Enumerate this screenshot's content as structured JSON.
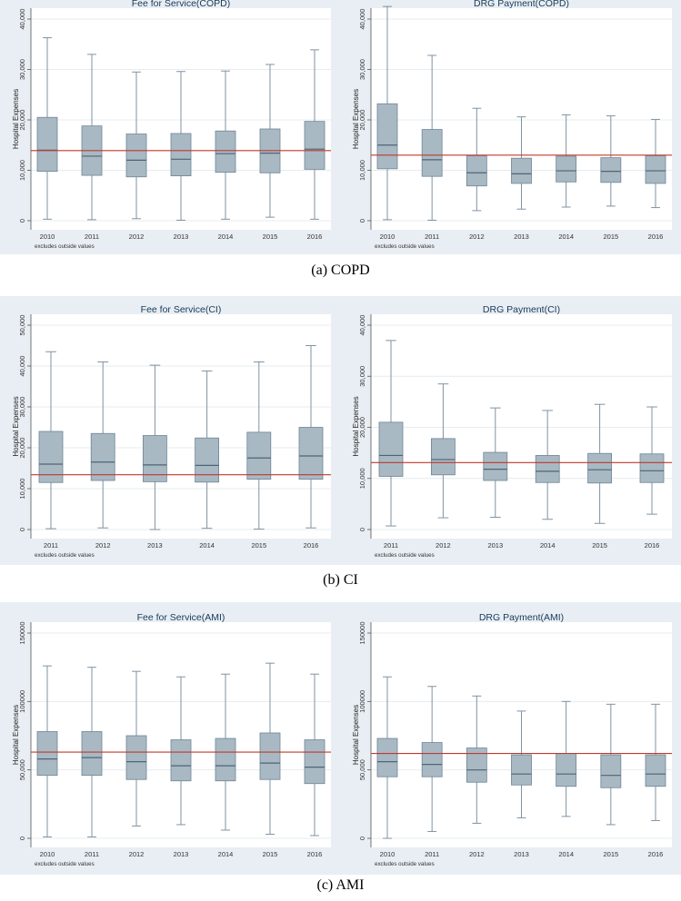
{
  "captions": [
    "(a) COPD",
    "(b) CI",
    "(c) AMI"
  ],
  "chart_data": [
    {
      "type": "box",
      "title": "Fee for Service(COPD)",
      "ylabel": "Hospital Expenses",
      "note": "excludes outside values",
      "ylim": [
        0,
        40000
      ],
      "yticks": [
        0,
        10000,
        20000,
        30000,
        40000
      ],
      "ytick_labels": [
        "0",
        "10,000",
        "20,000",
        "30,000",
        "40,000"
      ],
      "categories": [
        "2010",
        "2011",
        "2012",
        "2013",
        "2014",
        "2015",
        "2016"
      ],
      "boxes": [
        {
          "min": 300,
          "q1": 9800,
          "median": 14000,
          "q3": 20500,
          "max": 36300
        },
        {
          "min": 200,
          "q1": 9000,
          "median": 12800,
          "q3": 18800,
          "max": 33000
        },
        {
          "min": 400,
          "q1": 8700,
          "median": 12000,
          "q3": 17200,
          "max": 29500
        },
        {
          "min": 100,
          "q1": 8900,
          "median": 12200,
          "q3": 17300,
          "max": 29600
        },
        {
          "min": 300,
          "q1": 9600,
          "median": 13300,
          "q3": 17800,
          "max": 29700
        },
        {
          "min": 700,
          "q1": 9500,
          "median": 13400,
          "q3": 18200,
          "max": 31000
        },
        {
          "min": 300,
          "q1": 10200,
          "median": 14200,
          "q3": 19700,
          "max": 33900
        }
      ],
      "reference_line": 13900
    },
    {
      "type": "box",
      "title": "DRG Payment(COPD)",
      "ylabel": "Hospital Expenses",
      "note": "excludes outside values",
      "ylim": [
        0,
        40000
      ],
      "yticks": [
        0,
        10000,
        20000,
        30000,
        40000
      ],
      "ytick_labels": [
        "0",
        "10,000",
        "20,000",
        "30,000",
        "40,000"
      ],
      "categories": [
        "2010",
        "2011",
        "2012",
        "2013",
        "2014",
        "2015",
        "2016"
      ],
      "boxes": [
        {
          "min": 200,
          "q1": 10300,
          "median": 15000,
          "q3": 23200,
          "max": 42500
        },
        {
          "min": 100,
          "q1": 8800,
          "median": 12100,
          "q3": 18100,
          "max": 32800
        },
        {
          "min": 2000,
          "q1": 6900,
          "median": 9500,
          "q3": 12900,
          "max": 22300
        },
        {
          "min": 2300,
          "q1": 7400,
          "median": 9300,
          "q3": 12400,
          "max": 20600
        },
        {
          "min": 2700,
          "q1": 7700,
          "median": 9900,
          "q3": 12800,
          "max": 21000
        },
        {
          "min": 2900,
          "q1": 7600,
          "median": 9800,
          "q3": 12500,
          "max": 20800
        },
        {
          "min": 2600,
          "q1": 7400,
          "median": 9900,
          "q3": 12900,
          "max": 20100
        }
      ],
      "reference_line": 13000
    },
    {
      "type": "box",
      "title": "Fee for Service(CI)",
      "ylabel": "Hospital Expenses",
      "note": "excludes outside values",
      "ylim": [
        0,
        50000
      ],
      "yticks": [
        0,
        10000,
        20000,
        30000,
        40000,
        50000
      ],
      "ytick_labels": [
        "0",
        "10,000",
        "20,000",
        "30,000",
        "40,000",
        "50,000"
      ],
      "categories": [
        "2011",
        "2012",
        "2013",
        "2014",
        "2015",
        "2016"
      ],
      "boxes": [
        {
          "min": 200,
          "q1": 11500,
          "median": 16000,
          "q3": 24000,
          "max": 43500
        },
        {
          "min": 400,
          "q1": 12000,
          "median": 16500,
          "q3": 23500,
          "max": 41000
        },
        {
          "min": 0,
          "q1": 11700,
          "median": 15800,
          "q3": 23000,
          "max": 40200
        },
        {
          "min": 300,
          "q1": 11600,
          "median": 15700,
          "q3": 22400,
          "max": 38800
        },
        {
          "min": 100,
          "q1": 12300,
          "median": 17500,
          "q3": 23800,
          "max": 41000
        },
        {
          "min": 400,
          "q1": 12300,
          "median": 18000,
          "q3": 25000,
          "max": 45000
        }
      ],
      "reference_line": 13400
    },
    {
      "type": "box",
      "title": "DRG Payment(CI)",
      "ylabel": "Hospital Expenses",
      "note": "excludes outside values",
      "ylim": [
        0,
        40000
      ],
      "yticks": [
        0,
        10000,
        20000,
        30000,
        40000
      ],
      "ytick_labels": [
        "0",
        "10,000",
        "20,000",
        "30,000",
        "40,000"
      ],
      "categories": [
        "2011",
        "2012",
        "2013",
        "2014",
        "2015",
        "2016"
      ],
      "boxes": [
        {
          "min": 700,
          "q1": 10400,
          "median": 14500,
          "q3": 21000,
          "max": 37000
        },
        {
          "min": 2300,
          "q1": 10700,
          "median": 13700,
          "q3": 17800,
          "max": 28500
        },
        {
          "min": 2400,
          "q1": 9600,
          "median": 11800,
          "q3": 15100,
          "max": 23800
        },
        {
          "min": 2000,
          "q1": 9200,
          "median": 11400,
          "q3": 14500,
          "max": 23300
        },
        {
          "min": 1200,
          "q1": 9100,
          "median": 11700,
          "q3": 14900,
          "max": 24500
        },
        {
          "min": 3000,
          "q1": 9200,
          "median": 11500,
          "q3": 14800,
          "max": 24000
        }
      ],
      "reference_line": 13100
    },
    {
      "type": "box",
      "title": "Fee for Service(AMI)",
      "ylabel": "Hospital Expenses",
      "note": "excludes outside values",
      "ylim": [
        0,
        150000
      ],
      "yticks": [
        0,
        50000,
        100000,
        150000
      ],
      "ytick_labels": [
        "0",
        "50,000",
        "100000",
        "150000"
      ],
      "categories": [
        "2010",
        "2011",
        "2012",
        "2013",
        "2014",
        "2015",
        "2016"
      ],
      "boxes": [
        {
          "min": 1000,
          "q1": 46000,
          "median": 58000,
          "q3": 78000,
          "max": 126000
        },
        {
          "min": 1000,
          "q1": 46000,
          "median": 59000,
          "q3": 78000,
          "max": 125000
        },
        {
          "min": 9000,
          "q1": 43000,
          "median": 56000,
          "q3": 75000,
          "max": 122000
        },
        {
          "min": 10000,
          "q1": 42000,
          "median": 53000,
          "q3": 72000,
          "max": 118000
        },
        {
          "min": 6000,
          "q1": 42000,
          "median": 53000,
          "q3": 73000,
          "max": 120000
        },
        {
          "min": 3000,
          "q1": 43000,
          "median": 55000,
          "q3": 77000,
          "max": 128000
        },
        {
          "min": 2000,
          "q1": 40000,
          "median": 52000,
          "q3": 72000,
          "max": 120000
        }
      ],
      "reference_line": 63000
    },
    {
      "type": "box",
      "title": "DRG Payment(AMI)",
      "ylabel": "Hospital Expenses",
      "note": "excludes outside values",
      "ylim": [
        0,
        150000
      ],
      "yticks": [
        0,
        50000,
        100000,
        150000
      ],
      "ytick_labels": [
        "0",
        "50,000",
        "100000",
        "150000"
      ],
      "categories": [
        "2010",
        "2011",
        "2012",
        "2013",
        "2014",
        "2015",
        "2016"
      ],
      "boxes": [
        {
          "min": 0,
          "q1": 45000,
          "median": 56000,
          "q3": 73000,
          "max": 118000
        },
        {
          "min": 5000,
          "q1": 45000,
          "median": 54000,
          "q3": 70000,
          "max": 111000
        },
        {
          "min": 11000,
          "q1": 41000,
          "median": 50000,
          "q3": 66000,
          "max": 104000
        },
        {
          "min": 15000,
          "q1": 39000,
          "median": 47000,
          "q3": 61000,
          "max": 93000
        },
        {
          "min": 16000,
          "q1": 38000,
          "median": 47000,
          "q3": 62000,
          "max": 100000
        },
        {
          "min": 10000,
          "q1": 37000,
          "median": 46000,
          "q3": 61000,
          "max": 98000
        },
        {
          "min": 13000,
          "q1": 38000,
          "median": 47000,
          "q3": 61000,
          "max": 98000
        }
      ],
      "reference_line": 62000
    }
  ]
}
